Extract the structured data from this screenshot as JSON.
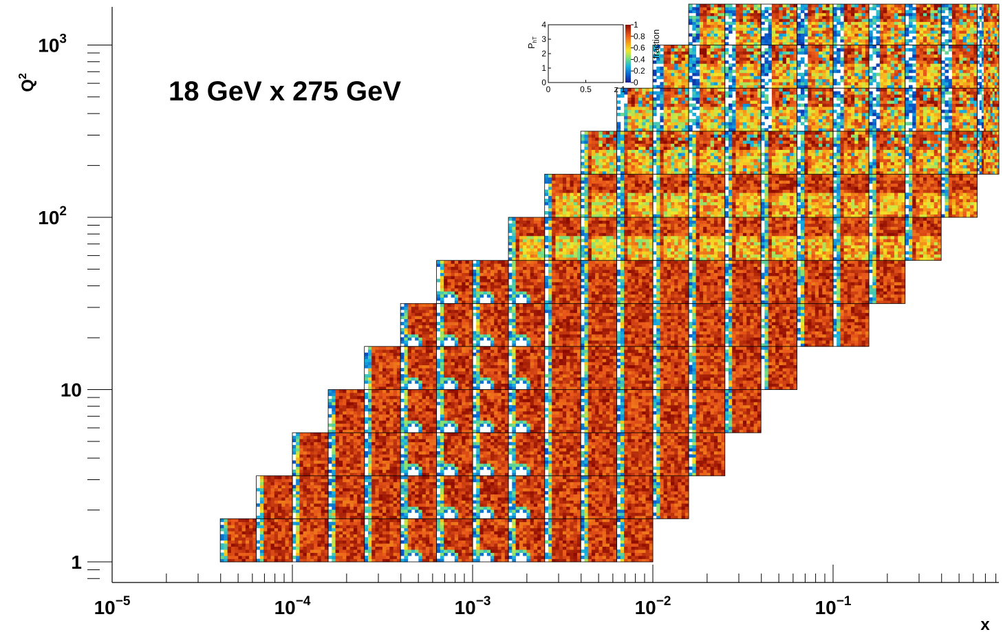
{
  "chart_data": {
    "type": "heatmap",
    "title": "18 GeV x 275 GeV",
    "xlabel": "x",
    "ylabel": "Q²",
    "ylabel_base": "Q",
    "ylabel_sup": "2",
    "x_scale": "log",
    "y_scale": "log",
    "xlim": [
      1e-05,
      0.8
    ],
    "ylim": [
      0.8,
      1300
    ],
    "x_ticks": [
      {
        "value": 1e-05,
        "base": "10",
        "exp": "−5"
      },
      {
        "value": 0.0001,
        "base": "10",
        "exp": "−4"
      },
      {
        "value": 0.001,
        "base": "10",
        "exp": "−3"
      },
      {
        "value": 0.01,
        "base": "10",
        "exp": "−2"
      },
      {
        "value": 0.1,
        "base": "10",
        "exp": "−1"
      }
    ],
    "y_ticks": [
      {
        "value": 1,
        "base": "1",
        "exp": ""
      },
      {
        "value": 10,
        "base": "10",
        "exp": ""
      },
      {
        "value": 100,
        "base": "10",
        "exp": "2"
      },
      {
        "value": 1000,
        "base": "10",
        "exp": "3"
      }
    ],
    "bins": {
      "x_edges": [
        3.98e-05,
        6.31e-05,
        0.0001,
        0.000158,
        0.000251,
        0.000398,
        0.000631,
        0.001,
        0.00158,
        0.00251,
        0.00398,
        0.00631,
        0.01,
        0.0158,
        0.0251,
        0.0398,
        0.0631,
        0.1,
        0.158,
        0.251,
        0.398,
        0.631,
        1.0
      ],
      "q2_edges": [
        1,
        1.78,
        3.16,
        5.62,
        10,
        17.8,
        31.6,
        56.2,
        100,
        178,
        316,
        562,
        1000,
        1778
      ],
      "row_x_range": [
        [
          0,
          12
        ],
        [
          1,
          13
        ],
        [
          2,
          14
        ],
        [
          3,
          15
        ],
        [
          4,
          16
        ],
        [
          5,
          18
        ],
        [
          6,
          19
        ],
        [
          8,
          20
        ],
        [
          9,
          21
        ],
        [
          10,
          22
        ],
        [
          11,
          22
        ],
        [
          12,
          22
        ],
        [
          13,
          22
        ]
      ]
    },
    "inset": {
      "ylabel_base": "P",
      "ylabel_sub": "hT",
      "xlabel": "z",
      "x_ticks": [
        "0",
        "0.5",
        "1"
      ],
      "y_ticks": [
        "0",
        "1",
        "2",
        "3",
        "4"
      ],
      "colorbar_label": "fraction",
      "colorbar_ticks": [
        "0",
        "0.2",
        "0.4",
        "0.6",
        "0.8",
        "1"
      ],
      "xlim": [
        0,
        1
      ],
      "ylim": [
        0,
        4
      ],
      "zlim": [
        0,
        1
      ]
    }
  }
}
